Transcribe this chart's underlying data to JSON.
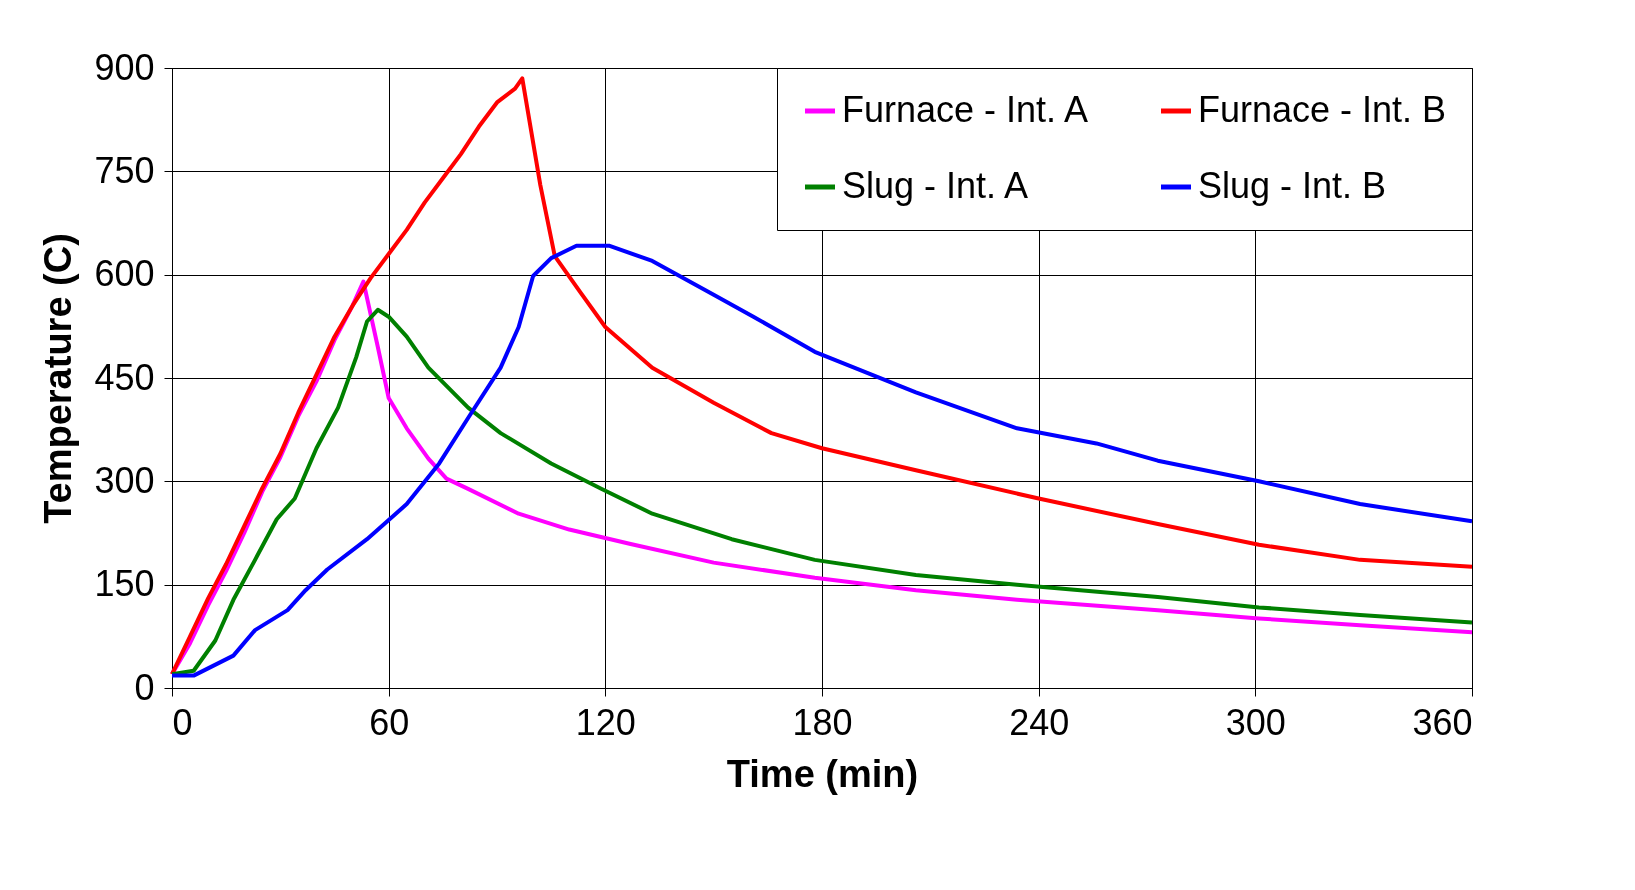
{
  "chart_data": {
    "type": "line",
    "xlabel": "Time (min)",
    "ylabel": "Temperature (C)",
    "xlim": [
      0,
      360
    ],
    "xticks": [
      0,
      60,
      120,
      180,
      240,
      300,
      360
    ],
    "ylim": [
      0,
      900
    ],
    "yticks": [
      0,
      150,
      300,
      450,
      600,
      750,
      900
    ],
    "grid": true,
    "legend": "top right",
    "marker": "none",
    "line_style": "solid",
    "series": [
      {
        "name": "Furnace - Int. A",
        "color": "#ff00ff",
        "x": [
          0,
          5,
          10,
          15,
          20,
          25,
          30,
          35,
          40,
          45,
          50,
          53,
          57,
          60,
          65,
          71,
          76,
          82,
          96,
          110,
          127,
          150,
          178,
          206,
          234,
          273,
          301,
          329,
          360
        ],
        "values": [
          20,
          65,
          120,
          170,
          225,
          285,
          335,
          395,
          445,
          505,
          555,
          590,
          495,
          421,
          377,
          333,
          304,
          289,
          253,
          230,
          209,
          182,
          160,
          142,
          128,
          113,
          101,
          91,
          81
        ]
      },
      {
        "name": "Furnace - Int. B",
        "color": "#ff0000",
        "x": [
          0,
          5,
          10,
          15,
          20,
          25,
          30,
          35,
          40,
          45,
          50,
          55,
          60,
          65,
          70,
          75,
          80,
          85,
          90,
          95,
          97,
          102,
          106,
          113,
          120,
          133,
          150,
          166,
          180,
          206,
          240,
          273,
          301,
          329,
          360
        ],
        "values": [
          20,
          75,
          130,
          180,
          235,
          290,
          340,
          400,
          455,
          510,
          555,
          595,
          630,
          665,
          705,
          740,
          775,
          815,
          850,
          870,
          885,
          730,
          627,
          575,
          524,
          465,
          414,
          370,
          348,
          316,
          275,
          238,
          208,
          186,
          176
        ]
      },
      {
        "name": "Slug - Int. A",
        "color": "#008000",
        "x": [
          0,
          6,
          12,
          17,
          23,
          29,
          34,
          40,
          46,
          51,
          54,
          57,
          60,
          65,
          71,
          82,
          91,
          105,
          119,
          133,
          155,
          178,
          206,
          234,
          273,
          301,
          329,
          360
        ],
        "values": [
          20,
          25,
          69,
          128,
          186,
          245,
          275,
          348,
          407,
          480,
          532,
          549,
          539,
          510,
          465,
          407,
          370,
          326,
          289,
          253,
          216,
          186,
          164,
          150,
          132,
          117,
          106,
          95
        ]
      },
      {
        "name": "Slug - Int. B",
        "color": "#0000ff",
        "x": [
          0,
          6,
          17,
          23,
          32,
          37,
          43,
          54,
          65,
          74,
          82,
          91,
          96,
          100,
          105,
          112,
          121,
          133,
          150,
          161,
          178,
          206,
          234,
          256,
          273,
          301,
          329,
          360
        ],
        "values": [
          18,
          18,
          47,
          84,
          113,
          142,
          172,
          216,
          267,
          326,
          392,
          465,
          524,
          598,
          624,
          642,
          642,
          620,
          571,
          539,
          488,
          429,
          377,
          355,
          330,
          300,
          267,
          242
        ]
      }
    ]
  }
}
